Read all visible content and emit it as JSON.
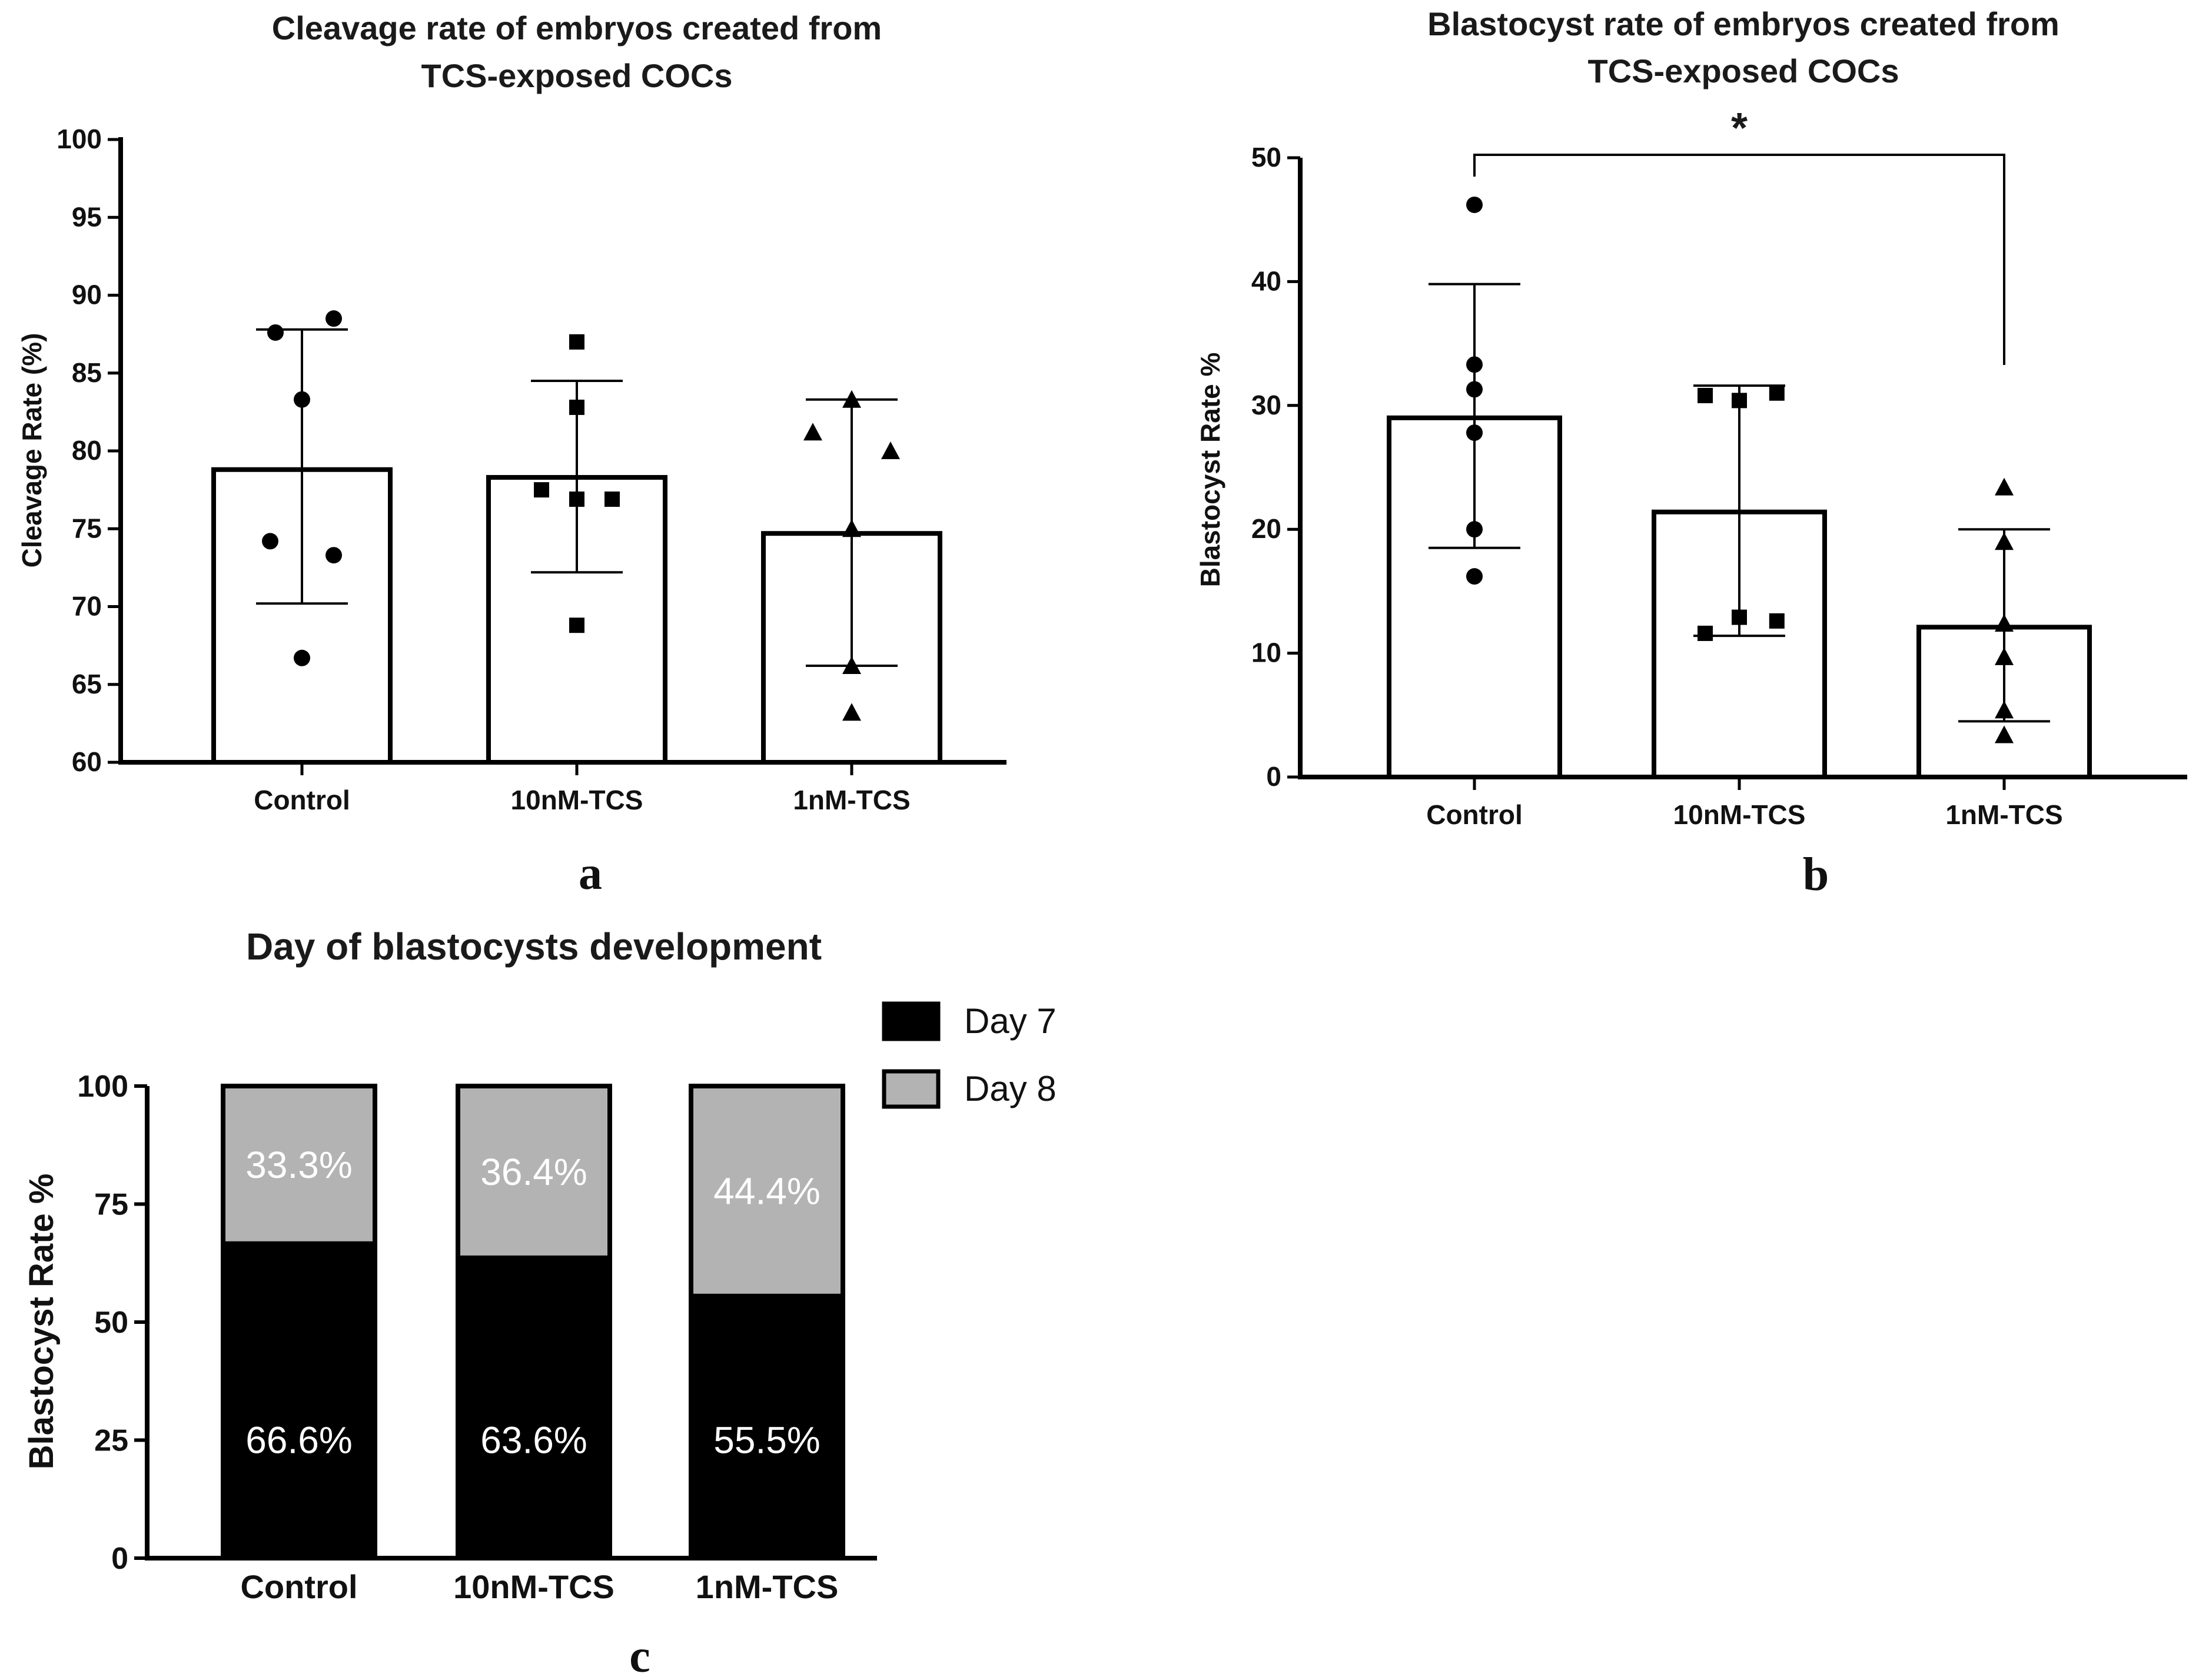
{
  "chart_data": [
    {
      "panel": "a",
      "type": "bar",
      "title": [
        "Cleavage rate of embryos created from",
        "TCS-exposed COCs"
      ],
      "xlabel": "",
      "ylabel": "Cleavage Rate (%)",
      "ylim": [
        60,
        100
      ],
      "yticks": [
        60,
        65,
        70,
        75,
        80,
        85,
        90,
        95,
        100
      ],
      "categories": [
        "Control",
        "10nM-TCS",
        "1nM-TCS"
      ],
      "values": [
        78.8,
        78.3,
        74.7
      ],
      "error_low": [
        70.2,
        72.2,
        66.2
      ],
      "error_high": [
        87.8,
        84.5,
        83.3
      ],
      "marker_shapes": [
        "circle",
        "square",
        "triangle"
      ],
      "points": [
        [
          [
            -0.15,
            87.6
          ],
          [
            0.18,
            88.5
          ],
          [
            0.0,
            83.3
          ],
          [
            -0.18,
            74.2
          ],
          [
            0.18,
            73.3
          ],
          [
            0.0,
            66.7
          ]
        ],
        [
          [
            0.0,
            87.0
          ],
          [
            0.0,
            82.8
          ],
          [
            -0.2,
            77.5
          ],
          [
            0.0,
            76.9
          ],
          [
            0.2,
            76.9
          ],
          [
            0.0,
            68.8
          ]
        ],
        [
          [
            0.0,
            83.3
          ],
          [
            -0.22,
            81.2
          ],
          [
            0.22,
            80.0
          ],
          [
            0.0,
            75.0
          ],
          [
            0.0,
            66.2
          ],
          [
            0.0,
            63.2
          ]
        ]
      ]
    },
    {
      "panel": "b",
      "type": "bar",
      "title": [
        "Blastocyst rate of embryos created from",
        "TCS-exposed COCs"
      ],
      "xlabel": "",
      "ylabel": "Blastocyst Rate %",
      "ylim": [
        0,
        50
      ],
      "yticks": [
        0,
        10,
        20,
        30,
        40,
        50
      ],
      "categories": [
        "Control",
        "10nM-TCS",
        "1nM-TCS"
      ],
      "values": [
        29.0,
        21.4,
        12.1
      ],
      "error_low": [
        18.5,
        11.4,
        4.5
      ],
      "error_high": [
        39.8,
        31.6,
        20.0
      ],
      "marker_shapes": [
        "circle",
        "square",
        "triangle"
      ],
      "points": [
        [
          [
            0.0,
            46.2
          ],
          [
            0.0,
            33.3
          ],
          [
            0.0,
            31.3
          ],
          [
            0.0,
            27.8
          ],
          [
            0.0,
            20.0
          ],
          [
            0.0,
            16.2
          ]
        ],
        [
          [
            -0.2,
            30.8
          ],
          [
            0.0,
            30.4
          ],
          [
            0.22,
            31.0
          ],
          [
            0.0,
            12.9
          ],
          [
            0.22,
            12.6
          ],
          [
            -0.2,
            11.6
          ]
        ],
        [
          [
            0.0,
            23.4
          ],
          [
            0.0,
            19.0
          ],
          [
            0.0,
            12.4
          ],
          [
            0.0,
            9.7
          ],
          [
            0.0,
            5.4
          ],
          [
            0.0,
            3.4
          ]
        ]
      ],
      "significance": {
        "between": [
          "Control",
          "1nM-TCS"
        ],
        "label": "*"
      }
    },
    {
      "panel": "c",
      "type": "stacked_bar",
      "title": "Day of blastocysts development",
      "xlabel": "",
      "ylabel": "Blastocyst Rate %",
      "ylim": [
        0,
        100
      ],
      "yticks": [
        0,
        25,
        50,
        75,
        100
      ],
      "categories": [
        "Control",
        "10nM-TCS",
        "1nM-TCS"
      ],
      "series": [
        {
          "name": "Day 7",
          "color": "#000000",
          "values": [
            66.6,
            63.6,
            55.5
          ],
          "labels": [
            "66.6%",
            "63.6%",
            "55.5%"
          ]
        },
        {
          "name": "Day 8",
          "color": "#b3b3b3",
          "values": [
            33.3,
            36.4,
            44.4
          ],
          "labels": [
            "33.3%",
            "36.4%",
            "44.4%"
          ]
        }
      ],
      "legend": "top-right"
    }
  ]
}
